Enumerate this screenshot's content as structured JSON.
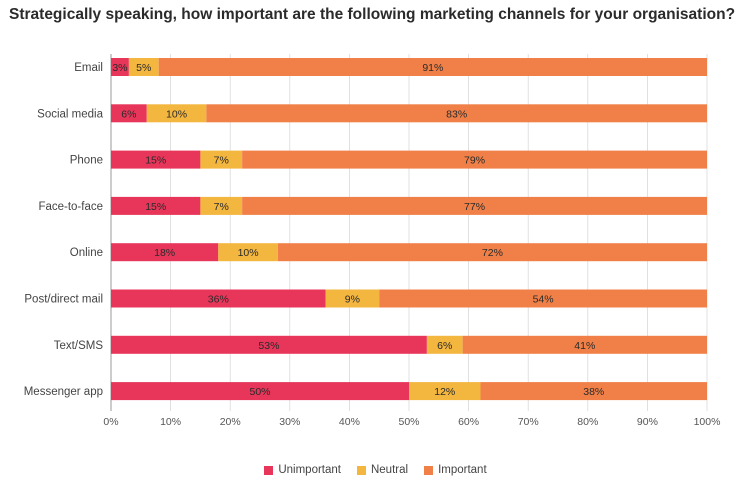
{
  "chart_data": {
    "type": "bar",
    "orientation": "horizontal",
    "stacked": true,
    "title": "Strategically speaking, how important are the following marketing channels for your organisation?",
    "categories": [
      "Email",
      "Social media",
      "Phone",
      "Face-to-face",
      "Online",
      "Post/direct mail",
      "Text/SMS",
      "Messenger app"
    ],
    "series": [
      {
        "name": "Unimportant",
        "color": "#e8365a",
        "values": [
          3,
          6,
          15,
          15,
          18,
          36,
          53,
          50
        ]
      },
      {
        "name": "Neutral",
        "color": "#f3b63f",
        "values": [
          5,
          10,
          7,
          7,
          10,
          9,
          6,
          12
        ]
      },
      {
        "name": "Important",
        "color": "#f08048",
        "values": [
          91,
          83,
          79,
          77,
          72,
          54,
          41,
          38
        ]
      }
    ],
    "value_labels": [
      [
        "3%",
        "5%",
        "91%"
      ],
      [
        "6%",
        "10%",
        "83%"
      ],
      [
        "15%",
        "7%",
        "79%"
      ],
      [
        "15%",
        "7%",
        "77%"
      ],
      [
        "18%",
        "10%",
        "72%"
      ],
      [
        "36%",
        "9%",
        "54%"
      ],
      [
        "53%",
        "6%",
        "41%"
      ],
      [
        "50%",
        "12%",
        "38%"
      ]
    ],
    "xlim": [
      0,
      100
    ],
    "x_ticks": [
      "0%",
      "10%",
      "20%",
      "30%",
      "40%",
      "50%",
      "60%",
      "70%",
      "80%",
      "90%",
      "100%"
    ],
    "grid": true,
    "legend": "bottom-center"
  }
}
